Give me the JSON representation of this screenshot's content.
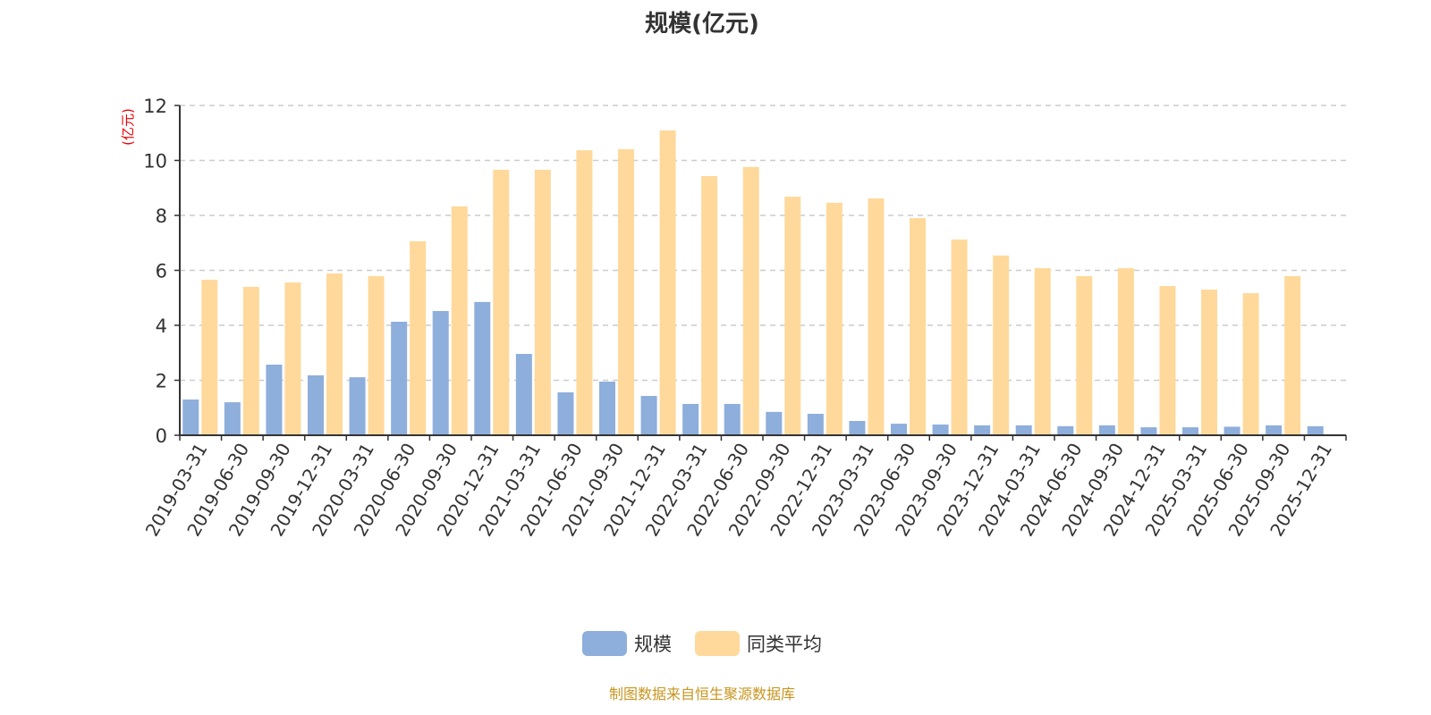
{
  "chart_data": {
    "type": "bar",
    "title": "规模(亿元)",
    "ylabel": "(亿元)",
    "xlabel": "",
    "ylim": [
      0,
      12
    ],
    "yticks": [
      0,
      2,
      4,
      6,
      8,
      10,
      12
    ],
    "grid": true,
    "legend_position": "bottom",
    "categories": [
      "2019-03-31",
      "2019-06-30",
      "2019-09-30",
      "2019-12-31",
      "2020-03-31",
      "2020-06-30",
      "2020-09-30",
      "2020-12-31",
      "2021-03-31",
      "2021-06-30",
      "2021-09-30",
      "2021-12-31",
      "2022-03-31",
      "2022-06-30",
      "2022-09-30",
      "2022-12-31",
      "2023-03-31",
      "2023-06-30",
      "2023-09-30",
      "2023-12-31",
      "2024-03-31",
      "2024-06-30",
      "2024-09-30",
      "2024-12-31",
      "2025-03-31",
      "2025-06-30",
      "2025-09-30",
      "2025-12-31"
    ],
    "series": [
      {
        "name": "规模",
        "color": "#8eaedb",
        "values": [
          1.3,
          1.2,
          2.57,
          2.18,
          2.11,
          4.13,
          4.52,
          4.85,
          2.96,
          1.56,
          1.95,
          1.43,
          1.14,
          1.14,
          0.85,
          0.78,
          0.52,
          0.42,
          0.39,
          0.36,
          0.36,
          0.33,
          0.36,
          0.29,
          0.29,
          0.31,
          0.36,
          0.33
        ]
      },
      {
        "name": "同类平均",
        "color": "#ffd99b",
        "values": [
          5.66,
          5.4,
          5.56,
          5.89,
          5.79,
          7.06,
          8.33,
          9.66,
          9.66,
          10.37,
          10.41,
          11.09,
          9.43,
          9.76,
          8.68,
          8.46,
          8.62,
          7.9,
          7.12,
          6.54,
          6.08,
          5.79,
          6.08,
          5.43,
          5.3,
          5.17,
          5.79,
          null
        ]
      }
    ]
  },
  "source": "制图数据来自恒生聚源数据库"
}
